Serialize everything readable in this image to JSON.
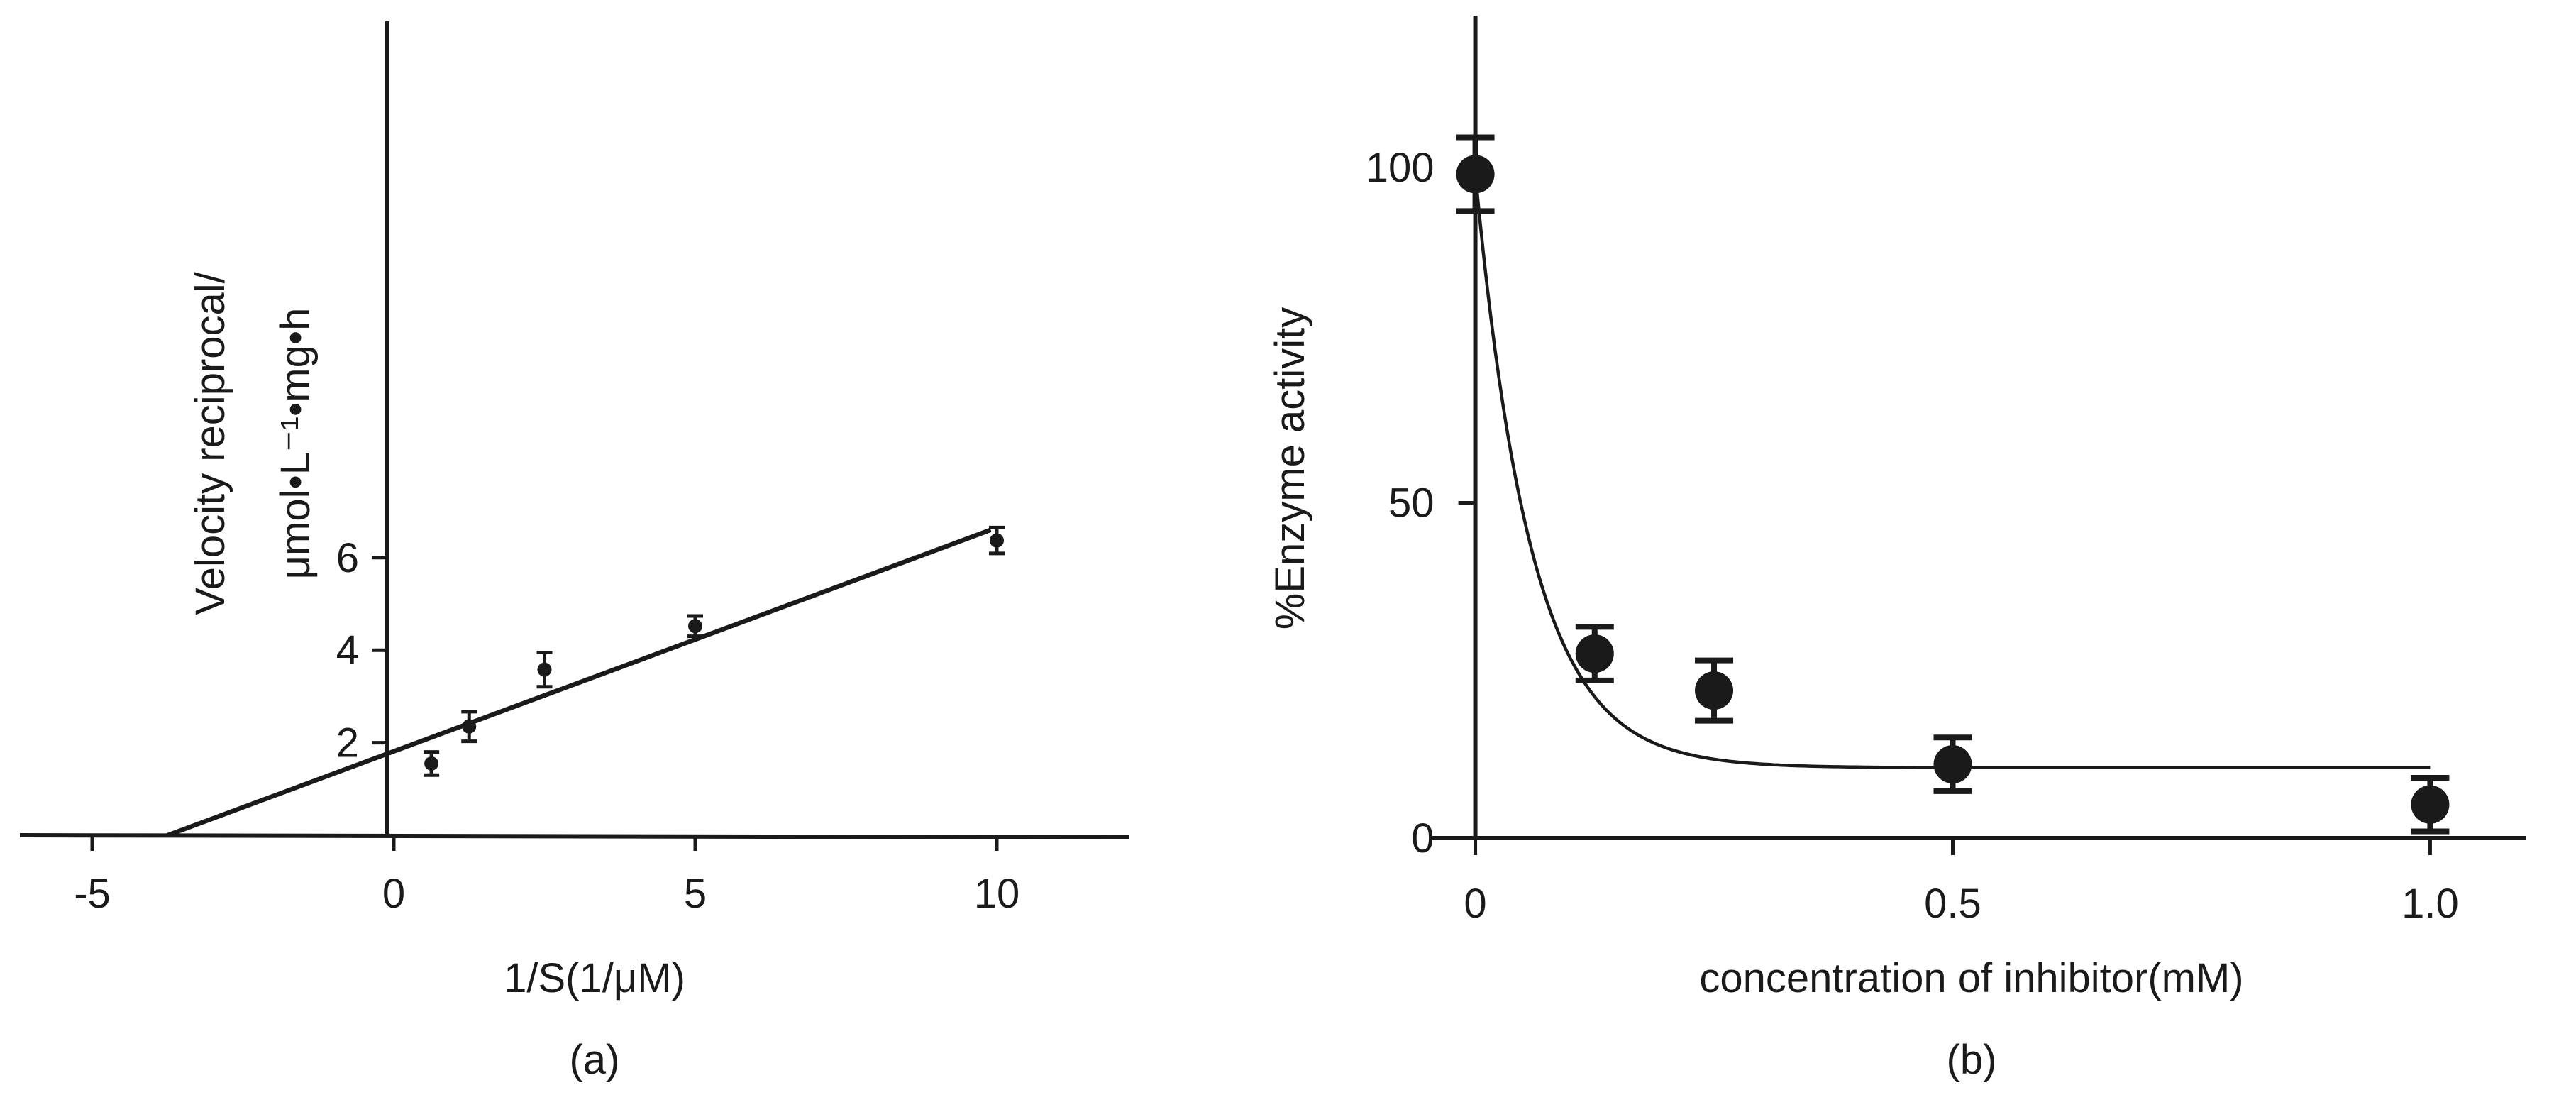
{
  "chart_data": [
    {
      "type": "scatter",
      "panel_label": "(a)",
      "xlabel": "1/S(1/μM)",
      "ylabel_lines": [
        "Velocity reciprocal/",
        "μmol•L⁻¹•mg•h"
      ],
      "xlim": [
        -6.2,
        12.2
      ],
      "ylim": [
        0,
        7
      ],
      "x_ticks": [
        -5,
        0,
        5,
        10
      ],
      "x_tick_labels": [
        "-5",
        "0",
        "5",
        "10"
      ],
      "y_ticks": [
        2,
        4,
        6
      ],
      "y_tick_labels": [
        "2",
        "4",
        "6"
      ],
      "grid": false,
      "legend": "none",
      "marker": "small-circle",
      "series": [
        {
          "x": [
            0.625,
            1.25,
            2.5,
            5.0,
            10.0
          ],
          "y": [
            1.55,
            2.35,
            3.58,
            4.52,
            6.37
          ],
          "yerr": [
            0.25,
            0.32,
            0.37,
            0.22,
            0.28
          ]
        }
      ],
      "fit_line": {
        "x": [
          -3.75,
          9.9
        ],
        "y": [
          0,
          6.6
        ]
      }
    },
    {
      "type": "scatter",
      "panel_label": "(b)",
      "xlabel": "concentration of inhibitor(mM)",
      "ylabel": "%Enzyme activity",
      "xlim": [
        -0.045,
        1.1
      ],
      "ylim": [
        0,
        122
      ],
      "x_ticks": [
        0,
        0.5,
        1.0
      ],
      "x_tick_labels": [
        "0",
        "0.5",
        "1.0"
      ],
      "y_ticks": [
        0,
        50,
        100
      ],
      "y_tick_labels": [
        "0",
        "50",
        "100"
      ],
      "grid": false,
      "legend": "none",
      "marker": "large-circle",
      "series": [
        {
          "x": [
            0,
            0.125,
            0.25,
            0.5,
            1.0
          ],
          "y": [
            99,
            27.5,
            22,
            11,
            5
          ],
          "yerr": [
            5.5,
            4,
            4.5,
            4,
            4
          ]
        }
      ],
      "fit_curve": {
        "model": "exponential-decay",
        "plateau": 10.5,
        "span": 88.5,
        "rate": 17,
        "x_range": [
          0,
          1.0
        ]
      }
    }
  ]
}
